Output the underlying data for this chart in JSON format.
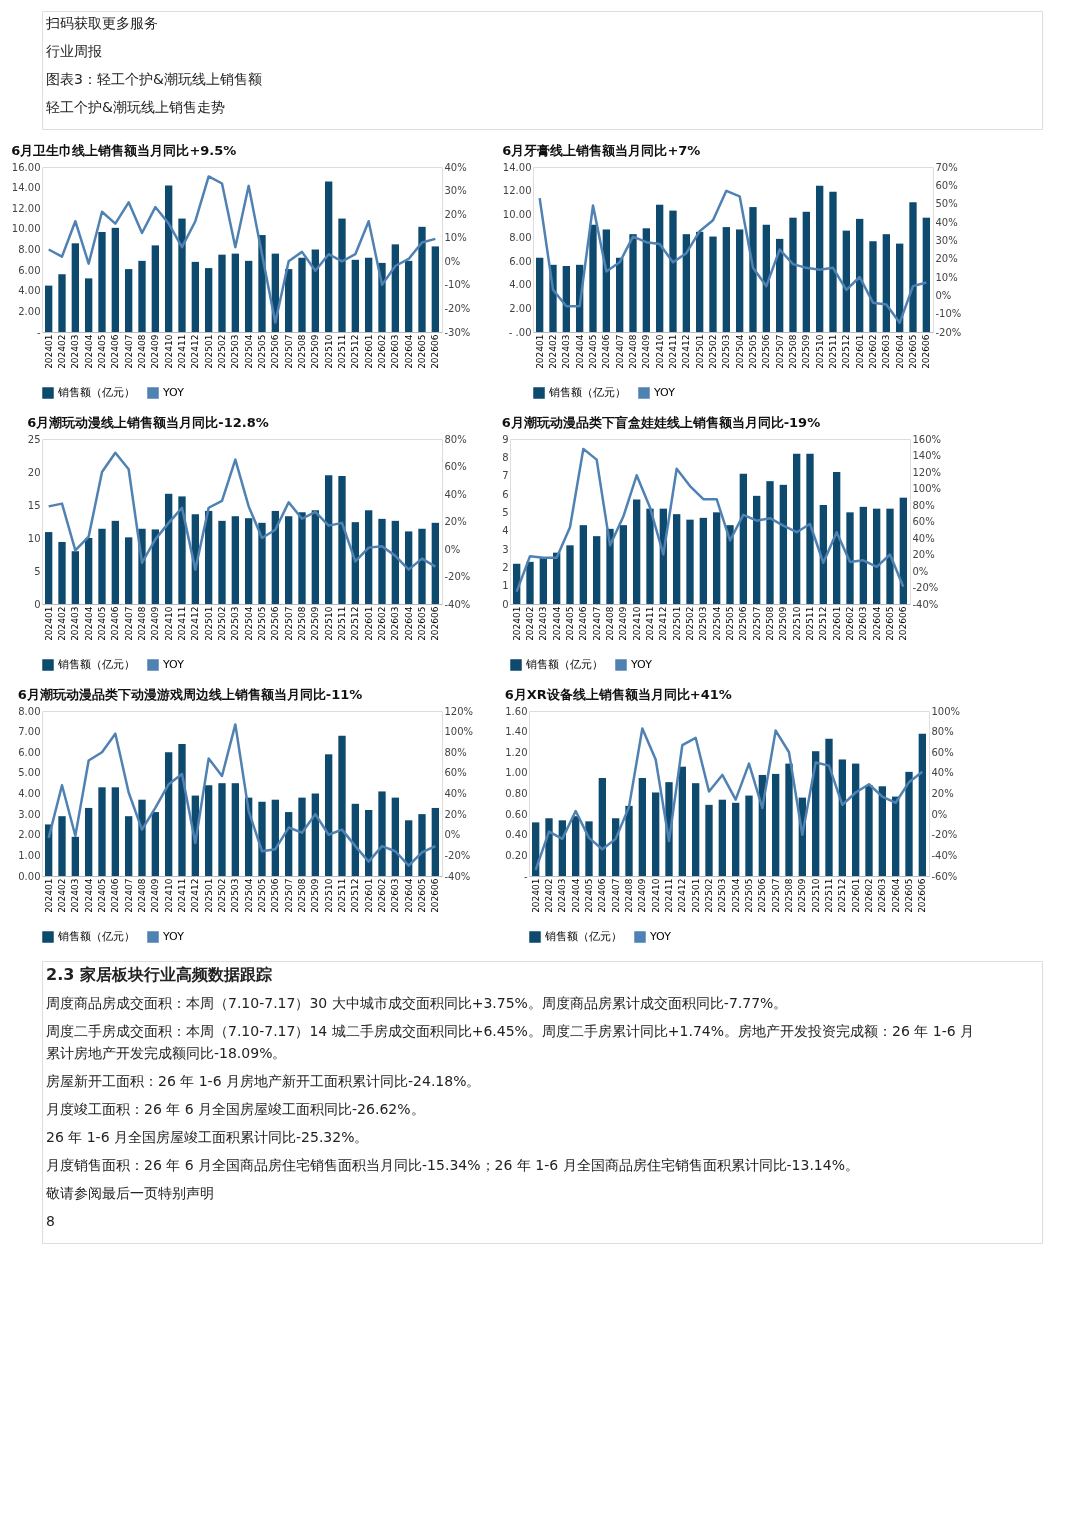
{
  "chart_data": [
    {
      "type": "other",
      "annotations": [
        "扫码获取更多服务",
        "行业周报",
        "图表3：轻工个护&潮玩线上销售额",
        "轻工个护&潮玩线上销售走势"
      ]
    },
    {
      "type": "bar",
      "title": "6月卫生巾线上销售额当月同比+9.5%",
      "legend": "bottom",
      "categories": [
        "202401",
        "202402",
        "202403",
        "202404",
        "202405",
        "202406",
        "202407",
        "202408",
        "202409",
        "202410",
        "202411",
        "202412",
        "202501",
        "202502",
        "202503",
        "202504",
        "202505",
        "202506",
        "202507",
        "202508",
        "202509",
        "202510",
        "202511",
        "202512",
        "202601",
        "202602",
        "202603",
        "202604",
        "202605",
        "202606"
      ],
      "series": [
        {
          "name": "销售额（亿元）",
          "type": "bar",
          "color": "#0d4a6e",
          "values": [
            4.5,
            5.6,
            8.6,
            5.2,
            9.7,
            10.1,
            6.1,
            6.9,
            8.4,
            14.2,
            11.0,
            6.8,
            6.2,
            7.5,
            7.6,
            6.9,
            9.4,
            7.6,
            6.1,
            7.2,
            8.0,
            14.6,
            11.0,
            7.0,
            7.2,
            6.7,
            8.5,
            6.9,
            10.2,
            8.3
          ]
        },
        {
          "name": "YOY",
          "type": "line",
          "axis": "y2",
          "color": "#4f81b3",
          "values": [
            5,
            2,
            17,
            -1,
            21,
            16,
            25,
            12,
            23,
            16,
            6,
            17,
            36,
            33,
            6,
            32,
            3,
            -26,
            0,
            4,
            -4,
            3,
            0,
            3,
            17,
            -10,
            -2,
            1,
            8,
            9.5
          ]
        }
      ],
      "ylim": [
        0,
        16
      ],
      "yticks": [
        {
          "value": 0,
          "label": "-"
        },
        {
          "value": 2,
          "label": "2.00"
        },
        {
          "value": 4,
          "label": "4.00"
        },
        {
          "value": 6,
          "label": "6.00"
        },
        {
          "value": 8,
          "label": "8.00"
        },
        {
          "value": 10,
          "label": "10.00"
        },
        {
          "value": 12,
          "label": "12.00"
        },
        {
          "value": 14,
          "label": "14.00"
        },
        {
          "value": 16,
          "label": "16.00"
        }
      ],
      "y2lim": [
        -30,
        40
      ],
      "y2ticks": [
        {
          "value": -30,
          "label": "-30%"
        },
        {
          "value": -20,
          "label": "-20%"
        },
        {
          "value": -10,
          "label": "-10%"
        },
        {
          "value": 0,
          "label": "0%"
        },
        {
          "value": 10,
          "label": "10%"
        },
        {
          "value": 20,
          "label": "20%"
        },
        {
          "value": 30,
          "label": "30%"
        },
        {
          "value": 40,
          "label": "40%"
        }
      ]
    },
    {
      "type": "bar",
      "title": "6月牙膏线上销售额当月同比+7%",
      "legend": "bottom",
      "categories": [
        "202401",
        "202402",
        "202403",
        "202404",
        "202405",
        "202406",
        "202407",
        "202408",
        "202409",
        "202410",
        "202411",
        "202412",
        "202501",
        "202502",
        "202503",
        "202504",
        "202505",
        "202506",
        "202507",
        "202508",
        "202509",
        "202510",
        "202511",
        "202512",
        "202601",
        "202602",
        "202603",
        "202604",
        "202605",
        "202606"
      ],
      "series": [
        {
          "name": "销售额（亿元）",
          "type": "bar",
          "color": "#0d4a6e",
          "values": [
            6.3,
            5.7,
            5.6,
            5.7,
            9.1,
            8.7,
            6.3,
            8.3,
            8.8,
            10.8,
            10.3,
            8.3,
            8.5,
            8.1,
            8.9,
            8.7,
            10.6,
            9.1,
            7.9,
            9.7,
            10.2,
            12.4,
            11.9,
            8.6,
            9.6,
            7.7,
            8.3,
            7.5,
            11.0,
            9.7
          ]
        },
        {
          "name": "YOY",
          "type": "line",
          "axis": "y2",
          "color": "#4f81b3",
          "values": [
            53,
            3,
            -6,
            -6,
            49,
            13,
            18,
            32,
            29,
            28,
            18,
            23,
            35,
            41,
            57,
            54,
            15,
            5,
            25,
            17,
            15,
            14,
            15,
            3,
            10,
            -4,
            -5,
            -15,
            5,
            7
          ]
        }
      ],
      "ylim": [
        0,
        14
      ],
      "yticks": [
        {
          "value": 0,
          "label": "- .00"
        },
        {
          "value": 2,
          "label": "2.00"
        },
        {
          "value": 4,
          "label": "4.00"
        },
        {
          "value": 6,
          "label": "6.00"
        },
        {
          "value": 8,
          "label": "8.00"
        },
        {
          "value": 10,
          "label": "10.00"
        },
        {
          "value": 12,
          "label": "12.00"
        },
        {
          "value": 14,
          "label": "14.00"
        }
      ],
      "y2lim": [
        -20,
        70
      ],
      "y2ticks": [
        {
          "value": -20,
          "label": "-20%"
        },
        {
          "value": -10,
          "label": "-10%"
        },
        {
          "value": 0,
          "label": "0%"
        },
        {
          "value": 10,
          "label": "10%"
        },
        {
          "value": 20,
          "label": "20%"
        },
        {
          "value": 30,
          "label": "30%"
        },
        {
          "value": 40,
          "label": "40%"
        },
        {
          "value": 50,
          "label": "50%"
        },
        {
          "value": 60,
          "label": "60%"
        },
        {
          "value": 70,
          "label": "70%"
        }
      ]
    },
    {
      "type": "bar",
      "title": "6月潮玩动漫线上销售额当月同比-12.8%",
      "legend": "bottom",
      "categories": [
        "202401",
        "202402",
        "202403",
        "202404",
        "202405",
        "202406",
        "202407",
        "202408",
        "202409",
        "202410",
        "202411",
        "202412",
        "202501",
        "202502",
        "202503",
        "202504",
        "202505",
        "202506",
        "202507",
        "202508",
        "202509",
        "202510",
        "202511",
        "202512",
        "202601",
        "202602",
        "202603",
        "202604",
        "202605",
        "202606"
      ],
      "series": [
        {
          "name": "销售额（亿元）",
          "type": "bar",
          "color": "#0d4a6e",
          "values": [
            10.9,
            9.4,
            8.0,
            10.0,
            11.4,
            12.6,
            10.1,
            11.4,
            11.3,
            16.7,
            16.3,
            13.6,
            14.1,
            12.6,
            13.3,
            13.0,
            12.3,
            14.1,
            13.3,
            13.9,
            14.2,
            19.5,
            19.4,
            12.4,
            14.2,
            12.9,
            12.6,
            11.0,
            11.4,
            12.3
          ]
        },
        {
          "name": "YOY",
          "type": "line",
          "axis": "y2",
          "color": "#4f81b3",
          "values": [
            31,
            33,
            -1,
            9,
            56,
            70,
            58,
            -10,
            7,
            19,
            30,
            -15,
            30,
            35,
            65,
            31,
            8,
            14,
            34,
            22,
            27,
            17,
            19,
            -9,
            1,
            2,
            -5,
            -15,
            -7,
            -12.8
          ]
        }
      ],
      "ylim": [
        0,
        25
      ],
      "yticks": [
        0,
        5,
        10,
        15,
        20,
        25
      ],
      "y2lim": [
        -40,
        80
      ],
      "y2ticks": [
        {
          "value": -40,
          "label": "-40%"
        },
        {
          "value": -20,
          "label": "-20%"
        },
        {
          "value": 0,
          "label": "0%"
        },
        {
          "value": 20,
          "label": "20%"
        },
        {
          "value": 40,
          "label": "40%"
        },
        {
          "value": 60,
          "label": "60%"
        },
        {
          "value": 80,
          "label": "80%"
        }
      ]
    },
    {
      "type": "bar",
      "title": "6月潮玩动漫品类下盲盒娃娃线上销售额当月同比-19%",
      "legend": "bottom",
      "categories": [
        "202401",
        "202402",
        "202403",
        "202404",
        "202405",
        "202406",
        "202407",
        "202408",
        "202409",
        "202410",
        "202411",
        "202412",
        "202501",
        "202502",
        "202503",
        "202504",
        "202505",
        "202506",
        "202507",
        "202508",
        "202509",
        "202510",
        "202511",
        "202512",
        "202601",
        "202602",
        "202603",
        "202604",
        "202605",
        "202606"
      ],
      "series": [
        {
          "name": "销售额（亿元）",
          "type": "bar",
          "color": "#0d4a6e",
          "values": [
            2.2,
            2.3,
            2.5,
            2.8,
            3.2,
            4.3,
            3.7,
            4.1,
            4.3,
            5.7,
            5.2,
            5.2,
            4.9,
            4.6,
            4.7,
            5.0,
            4.3,
            7.1,
            5.9,
            6.7,
            6.5,
            8.2,
            8.2,
            5.4,
            7.2,
            5.0,
            5.3,
            5.2,
            5.2,
            5.8
          ]
        },
        {
          "name": "YOY",
          "type": "line",
          "axis": "y2",
          "color": "#4f81b3",
          "values": [
            -25,
            18,
            16,
            16,
            53,
            148,
            135,
            31,
            66,
            116,
            77,
            20,
            124,
            103,
            87,
            87,
            37,
            68,
            61,
            64,
            55,
            47,
            57,
            10,
            47,
            11,
            13,
            5,
            20,
            -19
          ]
        }
      ],
      "ylim": [
        0,
        9
      ],
      "yticks": [
        0,
        1,
        2,
        3,
        4,
        5,
        6,
        7,
        8,
        9
      ],
      "y2lim": [
        -40,
        160
      ],
      "y2ticks": [
        {
          "value": -40,
          "label": "-40%"
        },
        {
          "value": -20,
          "label": "-20%"
        },
        {
          "value": 0,
          "label": "0%"
        },
        {
          "value": 20,
          "label": "20%"
        },
        {
          "value": 40,
          "label": "40%"
        },
        {
          "value": 60,
          "label": "60%"
        },
        {
          "value": 80,
          "label": "80%"
        },
        {
          "value": 100,
          "label": "100%"
        },
        {
          "value": 120,
          "label": "120%"
        },
        {
          "value": 140,
          "label": "140%"
        },
        {
          "value": 160,
          "label": "160%"
        }
      ]
    },
    {
      "type": "bar",
      "title": "6月潮玩动漫品类下动漫游戏周边线上销售额当月同比-11%",
      "legend": "bottom",
      "categories": [
        "202401",
        "202402",
        "202403",
        "202404",
        "202405",
        "202406",
        "202407",
        "202408",
        "202409",
        "202410",
        "202411",
        "202412",
        "202501",
        "202502",
        "202503",
        "202504",
        "202505",
        "202506",
        "202507",
        "202508",
        "202509",
        "202510",
        "202511",
        "202512",
        "202601",
        "202602",
        "202603",
        "202604",
        "202605",
        "202606"
      ],
      "series": [
        {
          "name": "销售额（亿元）",
          "type": "bar",
          "color": "#0d4a6e",
          "values": [
            2.5,
            2.9,
            1.9,
            3.3,
            4.3,
            4.3,
            2.9,
            3.7,
            3.1,
            6.0,
            6.4,
            3.9,
            4.4,
            4.5,
            4.5,
            3.8,
            3.6,
            3.7,
            3.1,
            3.8,
            4.0,
            5.9,
            6.8,
            3.5,
            3.2,
            4.1,
            3.8,
            2.7,
            3.0,
            3.3
          ]
        },
        {
          "name": "YOY",
          "type": "line",
          "axis": "y2",
          "color": "#4f81b3",
          "values": [
            -3,
            48,
            -1,
            72,
            80,
            98,
            41,
            5,
            26,
            49,
            59,
            -8,
            74,
            57,
            107,
            23,
            -16,
            -14,
            7,
            2,
            20,
            0,
            5,
            -11,
            -26,
            -11,
            -16,
            -30,
            -17,
            -11
          ]
        }
      ],
      "ylim": [
        0,
        8
      ],
      "yticks": [
        {
          "value": 0,
          "label": "0.00"
        },
        {
          "value": 1,
          "label": "1.00"
        },
        {
          "value": 2,
          "label": "2.00"
        },
        {
          "value": 3,
          "label": "3.00"
        },
        {
          "value": 4,
          "label": "4.00"
        },
        {
          "value": 5,
          "label": "5.00"
        },
        {
          "value": 6,
          "label": "6.00"
        },
        {
          "value": 7,
          "label": "7.00"
        },
        {
          "value": 8,
          "label": "8.00"
        }
      ],
      "y2lim": [
        -40,
        120
      ],
      "y2ticks": [
        {
          "value": -40,
          "label": "-40%"
        },
        {
          "value": -20,
          "label": "-20%"
        },
        {
          "value": 0,
          "label": "0%"
        },
        {
          "value": 20,
          "label": "20%"
        },
        {
          "value": 40,
          "label": "40%"
        },
        {
          "value": 60,
          "label": "60%"
        },
        {
          "value": 80,
          "label": "80%"
        },
        {
          "value": 100,
          "label": "100%"
        },
        {
          "value": 120,
          "label": "120%"
        }
      ]
    },
    {
      "type": "bar",
      "title": "6月XR设备线上销售额当月同比+41%",
      "legend": "bottom",
      "categories": [
        "202401",
        "202402",
        "202403",
        "202404",
        "202405",
        "202406",
        "202407",
        "202408",
        "202409",
        "202410",
        "202411",
        "202412",
        "202501",
        "202502",
        "202503",
        "202504",
        "202505",
        "202506",
        "202507",
        "202508",
        "202509",
        "202510",
        "202511",
        "202512",
        "202601",
        "202602",
        "202603",
        "202604",
        "202605",
        "202606"
      ],
      "series": [
        {
          "name": "销售额（亿元）",
          "type": "bar",
          "color": "#0d4a6e",
          "values": [
            0.52,
            0.56,
            0.54,
            0.58,
            0.53,
            0.95,
            0.56,
            0.68,
            0.95,
            0.81,
            0.91,
            1.06,
            0.9,
            0.69,
            0.74,
            0.71,
            0.78,
            0.98,
            0.99,
            1.09,
            0.76,
            1.21,
            1.33,
            1.13,
            1.09,
            0.88,
            0.87,
            0.77,
            1.01,
            1.38
          ]
        },
        {
          "name": "YOY",
          "type": "line",
          "axis": "y2",
          "color": "#4f81b3",
          "values": [
            -54,
            -17,
            -24,
            3,
            -23,
            -34,
            -24,
            7,
            83,
            53,
            -26,
            67,
            74,
            22,
            38,
            14,
            49,
            6,
            81,
            60,
            -20,
            50,
            47,
            9,
            21,
            29,
            17,
            11,
            31,
            41
          ]
        }
      ],
      "ylim": [
        0,
        1.6
      ],
      "yticks": [
        {
          "value": 0,
          "label": "-"
        },
        {
          "value": 0.2,
          "label": "0.20"
        },
        {
          "value": 0.4,
          "label": "0.40"
        },
        {
          "value": 0.6,
          "label": "0.60"
        },
        {
          "value": 0.8,
          "label": "0.80"
        },
        {
          "value": 1.0,
          "label": "1.00"
        },
        {
          "value": 1.2,
          "label": "1.20"
        },
        {
          "value": 1.4,
          "label": "1.40"
        },
        {
          "value": 1.6,
          "label": "1.60"
        }
      ],
      "y2lim": [
        -60,
        100
      ],
      "y2ticks": [
        {
          "value": -60,
          "label": "-60%"
        },
        {
          "value": -40,
          "label": "-40%"
        },
        {
          "value": -20,
          "label": "-20%"
        },
        {
          "value": 0,
          "label": "0%"
        },
        {
          "value": 20,
          "label": "20%"
        },
        {
          "value": 40,
          "label": "40%"
        },
        {
          "value": 60,
          "label": "60%"
        },
        {
          "value": 80,
          "label": "80%"
        },
        {
          "value": 100,
          "label": "100%"
        }
      ]
    },
    {
      "type": "other",
      "title": "2.3 家居板块行业高频数据跟踪",
      "annotations": [
        "周度商品房成交面积：本周（7.10-7.17）30 大中城市成交面积同比+3.75%。周度商品房累计成交面积同比-7.77%。",
        "周度二手房成交面积：本周（7.10-7.17）14 城二手房成交面积同比+6.45%。周度二手房累计同比+1.74%。房地产开发投资完成额：26 年 1-6 月累计房地产开发完成额同比-18.09%。",
        "房屋新开工面积：26 年 1-6 月房地产新开工面积累计同比-24.18%。",
        "月度竣工面积：26 年 6 月全国房屋竣工面积同比-26.62%。",
        "26 年 1-6 月全国房屋竣工面积累计同比-25.32%。",
        "月度销售面积：26 年 6 月全国商品房住宅销售面积当月同比-15.34%；26 年 1-6 月全国商品房住宅销售面积累计同比-13.14%。",
        "敬请参阅最后一页特别声明",
        "8"
      ]
    }
  ]
}
